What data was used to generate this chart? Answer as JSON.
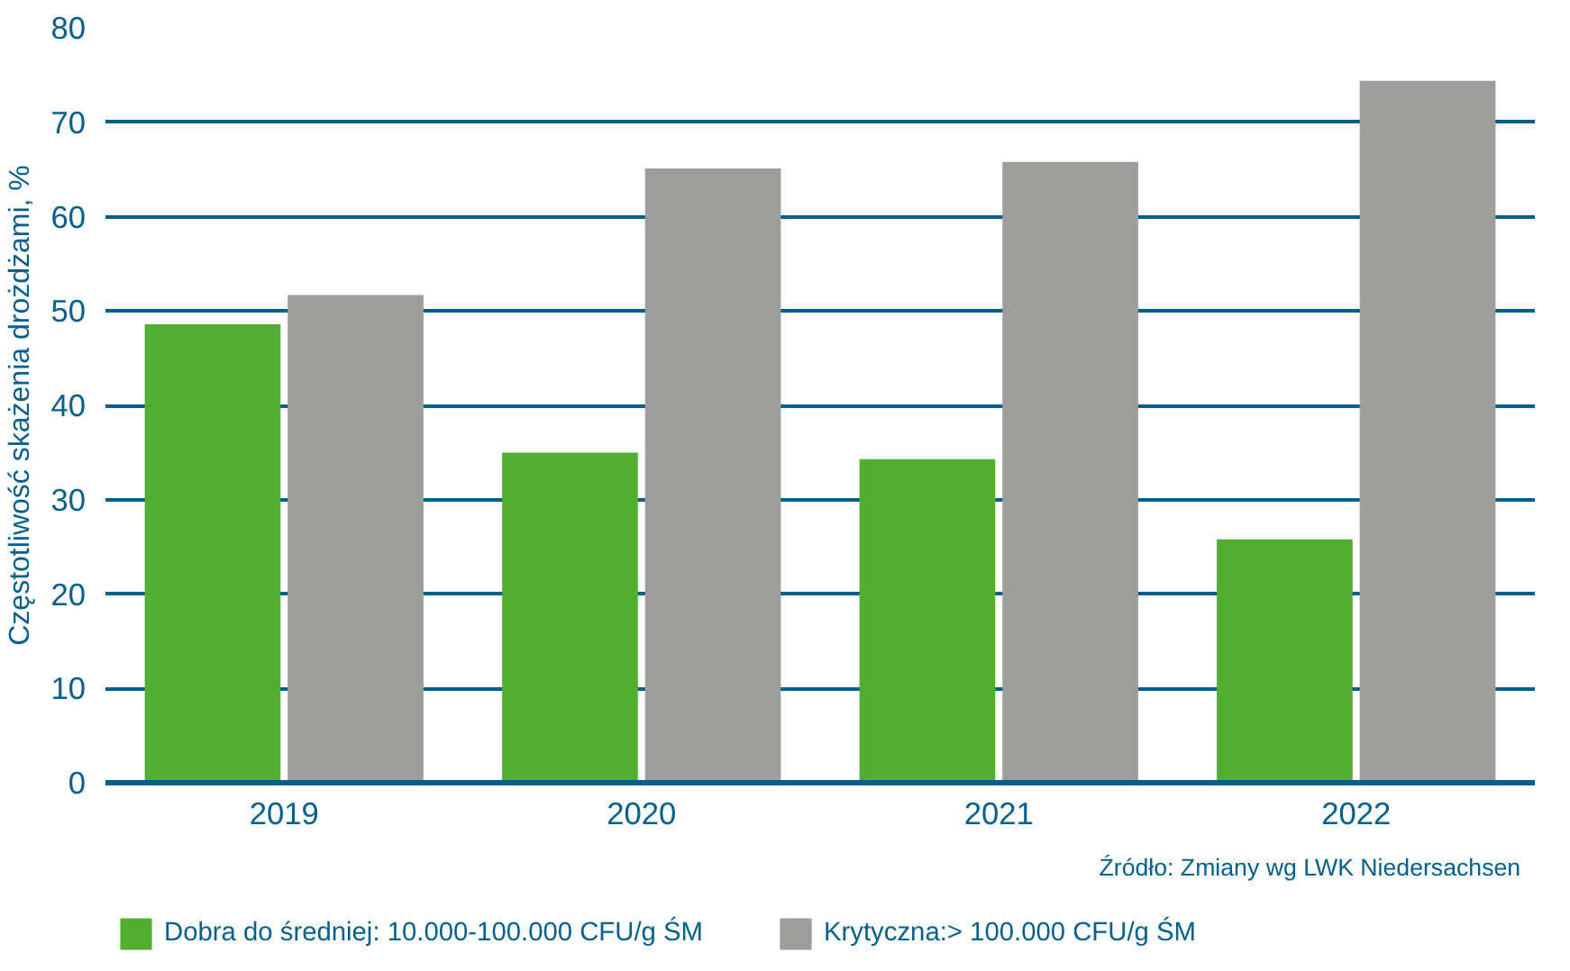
{
  "chart_data": {
    "type": "bar",
    "ylabel": "Częstotliwość skażenia drożdżami, %",
    "categories": [
      "2019",
      "2020",
      "2021",
      "2022"
    ],
    "series": [
      {
        "name": "Dobra do średniej: 10.000-100.000 CFU/g ŚM",
        "color": "#52ae32",
        "values": [
          48.6,
          35.0,
          34.3,
          25.8
        ]
      },
      {
        "name": "Krytyczna:> 100.000 CFU/g ŚM",
        "color": "#9d9d9c",
        "values": [
          51.7,
          65.1,
          65.8,
          74.4
        ]
      }
    ],
    "ylim": [
      0,
      80
    ],
    "yticks": [
      0,
      10,
      20,
      30,
      40,
      50,
      60,
      70,
      80
    ],
    "grid": "y",
    "legend": "bottom",
    "annotations": [
      "Źródło: Zmiany wg LWK Niedersachsen"
    ]
  }
}
